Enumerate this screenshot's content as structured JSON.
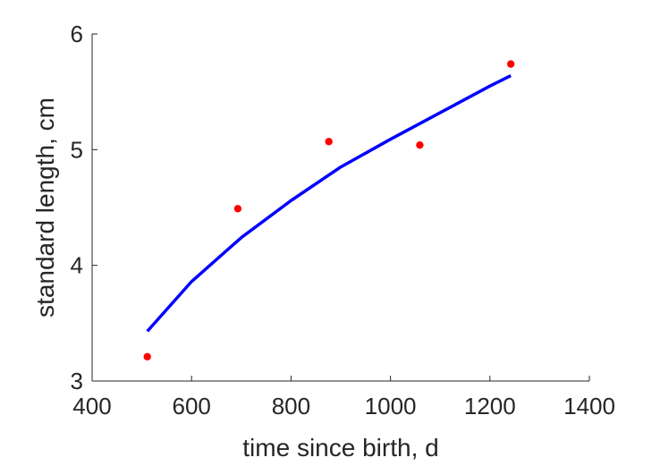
{
  "chart_data": {
    "type": "scatter",
    "title": "",
    "xlabel": "time since birth, d",
    "ylabel": "standard length, cm",
    "xlim": [
      400,
      1400
    ],
    "ylim": [
      3,
      6
    ],
    "xticks": [
      400,
      600,
      800,
      1000,
      1200,
      1400
    ],
    "yticks": [
      3,
      4,
      5,
      6
    ],
    "grid": false,
    "legend": "none",
    "series": [
      {
        "kind": "points",
        "color": "#ff0000",
        "x": [
          511,
          693,
          876,
          1059,
          1242
        ],
        "y": [
          3.21,
          4.49,
          5.07,
          5.04,
          5.74
        ]
      },
      {
        "kind": "line",
        "color": "#0000ff",
        "x": [
          511,
          600,
          700,
          800,
          900,
          1000,
          1100,
          1200,
          1242
        ],
        "y": [
          3.43,
          3.86,
          4.24,
          4.56,
          4.85,
          5.09,
          5.32,
          5.55,
          5.64
        ]
      }
    ]
  }
}
